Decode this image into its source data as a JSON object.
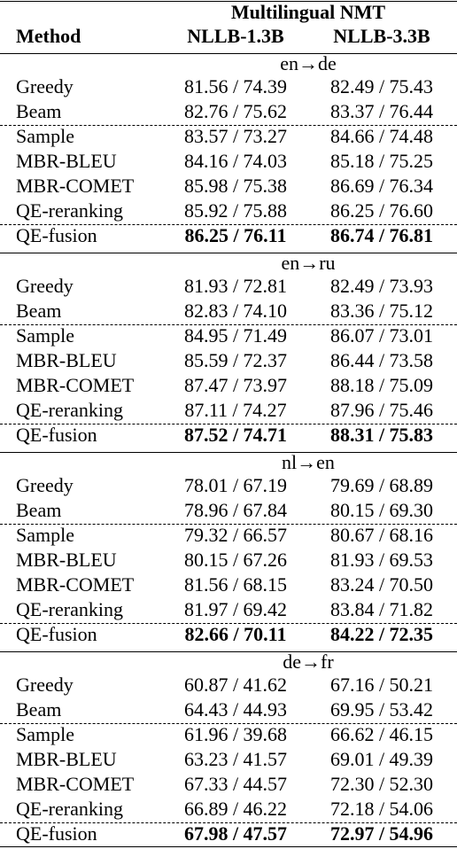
{
  "header": {
    "group": "Multilingual NMT",
    "method": "Method",
    "col1": "NLLB-1.3B",
    "col2": "NLLB-3.3B"
  },
  "sections": [
    {
      "label": "en→de",
      "rows": [
        [
          "Greedy",
          "81.56 / 74.39",
          "82.49 / 75.43"
        ],
        [
          "Beam",
          "82.76 / 75.62",
          "83.37 / 76.44"
        ],
        [
          "Sample",
          "83.57 / 73.27",
          "84.66 / 74.48"
        ],
        [
          "MBR-BLEU",
          "84.16 / 74.03",
          "85.18 / 75.25"
        ],
        [
          "MBR-COMET",
          "85.98 / 75.38",
          "86.69 / 76.34"
        ],
        [
          "QE-reranking",
          "85.92 / 75.88",
          "86.25 / 76.60"
        ],
        [
          "QE-fusion",
          "86.25 / 76.11",
          "86.74 / 76.81"
        ]
      ]
    },
    {
      "label": "en→ru",
      "rows": [
        [
          "Greedy",
          "81.93 / 72.81",
          "82.49 / 73.93"
        ],
        [
          "Beam",
          "82.83 / 74.10",
          "83.36 / 75.12"
        ],
        [
          "Sample",
          "84.95 / 71.49",
          "86.07 / 73.01"
        ],
        [
          "MBR-BLEU",
          "85.59 / 72.37",
          "86.44 / 73.58"
        ],
        [
          "MBR-COMET",
          "87.47 / 73.97",
          "88.18 / 75.09"
        ],
        [
          "QE-reranking",
          "87.11 / 74.27",
          "87.96 / 75.46"
        ],
        [
          "QE-fusion",
          "87.52 / 74.71",
          "88.31 / 75.83"
        ]
      ]
    },
    {
      "label": "nl→en",
      "rows": [
        [
          "Greedy",
          "78.01 / 67.19",
          "79.69 / 68.89"
        ],
        [
          "Beam",
          "78.96 / 67.84",
          "80.15 / 69.30"
        ],
        [
          "Sample",
          "79.32 / 66.57",
          "80.67 / 68.16"
        ],
        [
          "MBR-BLEU",
          "80.15 / 67.26",
          "81.93 / 69.53"
        ],
        [
          "MBR-COMET",
          "81.56 / 68.15",
          "83.24 / 70.50"
        ],
        [
          "QE-reranking",
          "81.97 / 69.42",
          "83.84 / 71.82"
        ],
        [
          "QE-fusion",
          "82.66 / 70.11",
          "84.22 / 72.35"
        ]
      ]
    },
    {
      "label": "de→fr",
      "rows": [
        [
          "Greedy",
          "60.87 / 41.62",
          "67.16 / 50.21"
        ],
        [
          "Beam",
          "64.43 / 44.93",
          "69.95 / 53.42"
        ],
        [
          "Sample",
          "61.96 / 39.68",
          "66.62 / 46.15"
        ],
        [
          "MBR-BLEU",
          "63.23 / 41.57",
          "69.01 / 49.39"
        ],
        [
          "MBR-COMET",
          "67.33 / 44.57",
          "72.30 / 52.30"
        ],
        [
          "QE-reranking",
          "66.89 / 46.22",
          "72.18 / 54.06"
        ],
        [
          "QE-fusion",
          "67.98 / 47.57",
          "72.97 / 54.96"
        ]
      ]
    }
  ]
}
